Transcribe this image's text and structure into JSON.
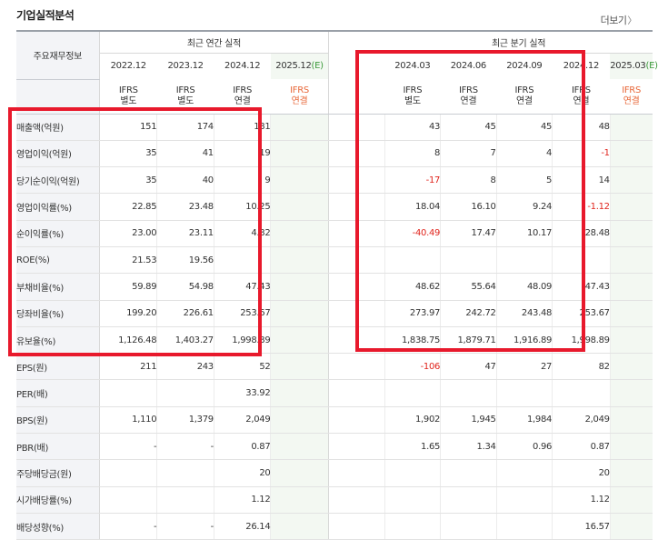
{
  "header": {
    "title": "기업실적분석",
    "more_label": "더보기",
    "more_chevron": "〉"
  },
  "table": {
    "row_header": "주요재무정보",
    "group_annual": "최근 연간 실적",
    "group_quarter": "최근 분기 실적",
    "annual_periods": [
      "2022.12",
      "2023.12",
      "2024.12",
      "2025.12"
    ],
    "quarter_periods": [
      "2024.03",
      "2024.06",
      "2024.09",
      "2024.12",
      "2025.03"
    ],
    "estimate_mark": "(E)",
    "annual_ifrs": [
      {
        "top": "IFRS",
        "bottom": "별도"
      },
      {
        "top": "IFRS",
        "bottom": "별도"
      },
      {
        "top": "IFRS",
        "bottom": "연결"
      },
      {
        "top": "IFRS",
        "bottom": "연결"
      }
    ],
    "quarter_ifrs": [
      {
        "top": "IFRS",
        "bottom": "별도"
      },
      {
        "top": "IFRS",
        "bottom": "연결"
      },
      {
        "top": "IFRS",
        "bottom": "연결"
      },
      {
        "top": "IFRS",
        "bottom": "연결"
      },
      {
        "top": "IFRS",
        "bottom": "연결"
      }
    ],
    "rows": [
      {
        "label": "매출액(억원)",
        "annual": [
          "151",
          "174",
          "181",
          ""
        ],
        "quarter": [
          "43",
          "45",
          "45",
          "48",
          ""
        ]
      },
      {
        "label": "영업이익(억원)",
        "annual": [
          "35",
          "41",
          "19",
          ""
        ],
        "quarter": [
          "8",
          "7",
          "4",
          "-1",
          ""
        ]
      },
      {
        "label": "당기순이익(억원)",
        "annual": [
          "35",
          "40",
          "9",
          ""
        ],
        "quarter": [
          "-17",
          "8",
          "5",
          "14",
          ""
        ]
      },
      {
        "label": "영업이익률(%)",
        "annual": [
          "22.85",
          "23.48",
          "10.25",
          ""
        ],
        "quarter": [
          "18.04",
          "16.10",
          "9.24",
          "-1.12",
          ""
        ]
      },
      {
        "label": "순이익률(%)",
        "annual": [
          "23.00",
          "23.11",
          "4.82",
          ""
        ],
        "quarter": [
          "-40.49",
          "17.47",
          "10.17",
          "28.48",
          ""
        ]
      },
      {
        "label": "ROE(%)",
        "annual": [
          "21.53",
          "19.56",
          "",
          ""
        ],
        "quarter": [
          "",
          "",
          "",
          "",
          ""
        ]
      },
      {
        "label": "부채비율(%)",
        "annual": [
          "59.89",
          "54.98",
          "47.43",
          ""
        ],
        "quarter": [
          "48.62",
          "55.64",
          "48.09",
          "47.43",
          ""
        ]
      },
      {
        "label": "당좌비율(%)",
        "annual": [
          "199.20",
          "226.61",
          "253.67",
          ""
        ],
        "quarter": [
          "273.97",
          "242.72",
          "243.48",
          "253.67",
          ""
        ]
      },
      {
        "label": "유보율(%)",
        "annual": [
          "1,126.48",
          "1,403.27",
          "1,998.89",
          ""
        ],
        "quarter": [
          "1,838.75",
          "1,879.71",
          "1,916.89",
          "1,998.89",
          ""
        ]
      },
      {
        "label": "EPS(원)",
        "annual": [
          "211",
          "243",
          "52",
          ""
        ],
        "quarter": [
          "-106",
          "47",
          "27",
          "82",
          ""
        ]
      },
      {
        "label": "PER(배)",
        "annual": [
          "",
          "",
          "33.92",
          ""
        ],
        "quarter": [
          "",
          "",
          "",
          "",
          ""
        ]
      },
      {
        "label": "BPS(원)",
        "annual": [
          "1,110",
          "1,379",
          "2,049",
          ""
        ],
        "quarter": [
          "1,902",
          "1,945",
          "1,984",
          "2,049",
          ""
        ]
      },
      {
        "label": "PBR(배)",
        "annual": [
          "-",
          "-",
          "0.87",
          ""
        ],
        "quarter": [
          "1.65",
          "1.34",
          "0.96",
          "0.87",
          ""
        ]
      },
      {
        "label": "주당배당금(원)",
        "annual": [
          "",
          "",
          "20",
          ""
        ],
        "quarter": [
          "",
          "",
          "",
          "20",
          ""
        ]
      },
      {
        "label": "시가배당률(%)",
        "annual": [
          "",
          "",
          "1.12",
          ""
        ],
        "quarter": [
          "",
          "",
          "",
          "1.12",
          ""
        ]
      },
      {
        "label": "배당성향(%)",
        "annual": [
          "-",
          "-",
          "26.14",
          ""
        ],
        "quarter": [
          "",
          "",
          "",
          "16.57",
          ""
        ]
      }
    ]
  },
  "colors": {
    "negative": "#e0251d",
    "ifrs": "#e8683a",
    "estimate_mark": "#3b9a3b",
    "highlight": "#e8192c",
    "label_bg": "#f3f4f7",
    "estimate_bg": "#f3f8f2"
  }
}
